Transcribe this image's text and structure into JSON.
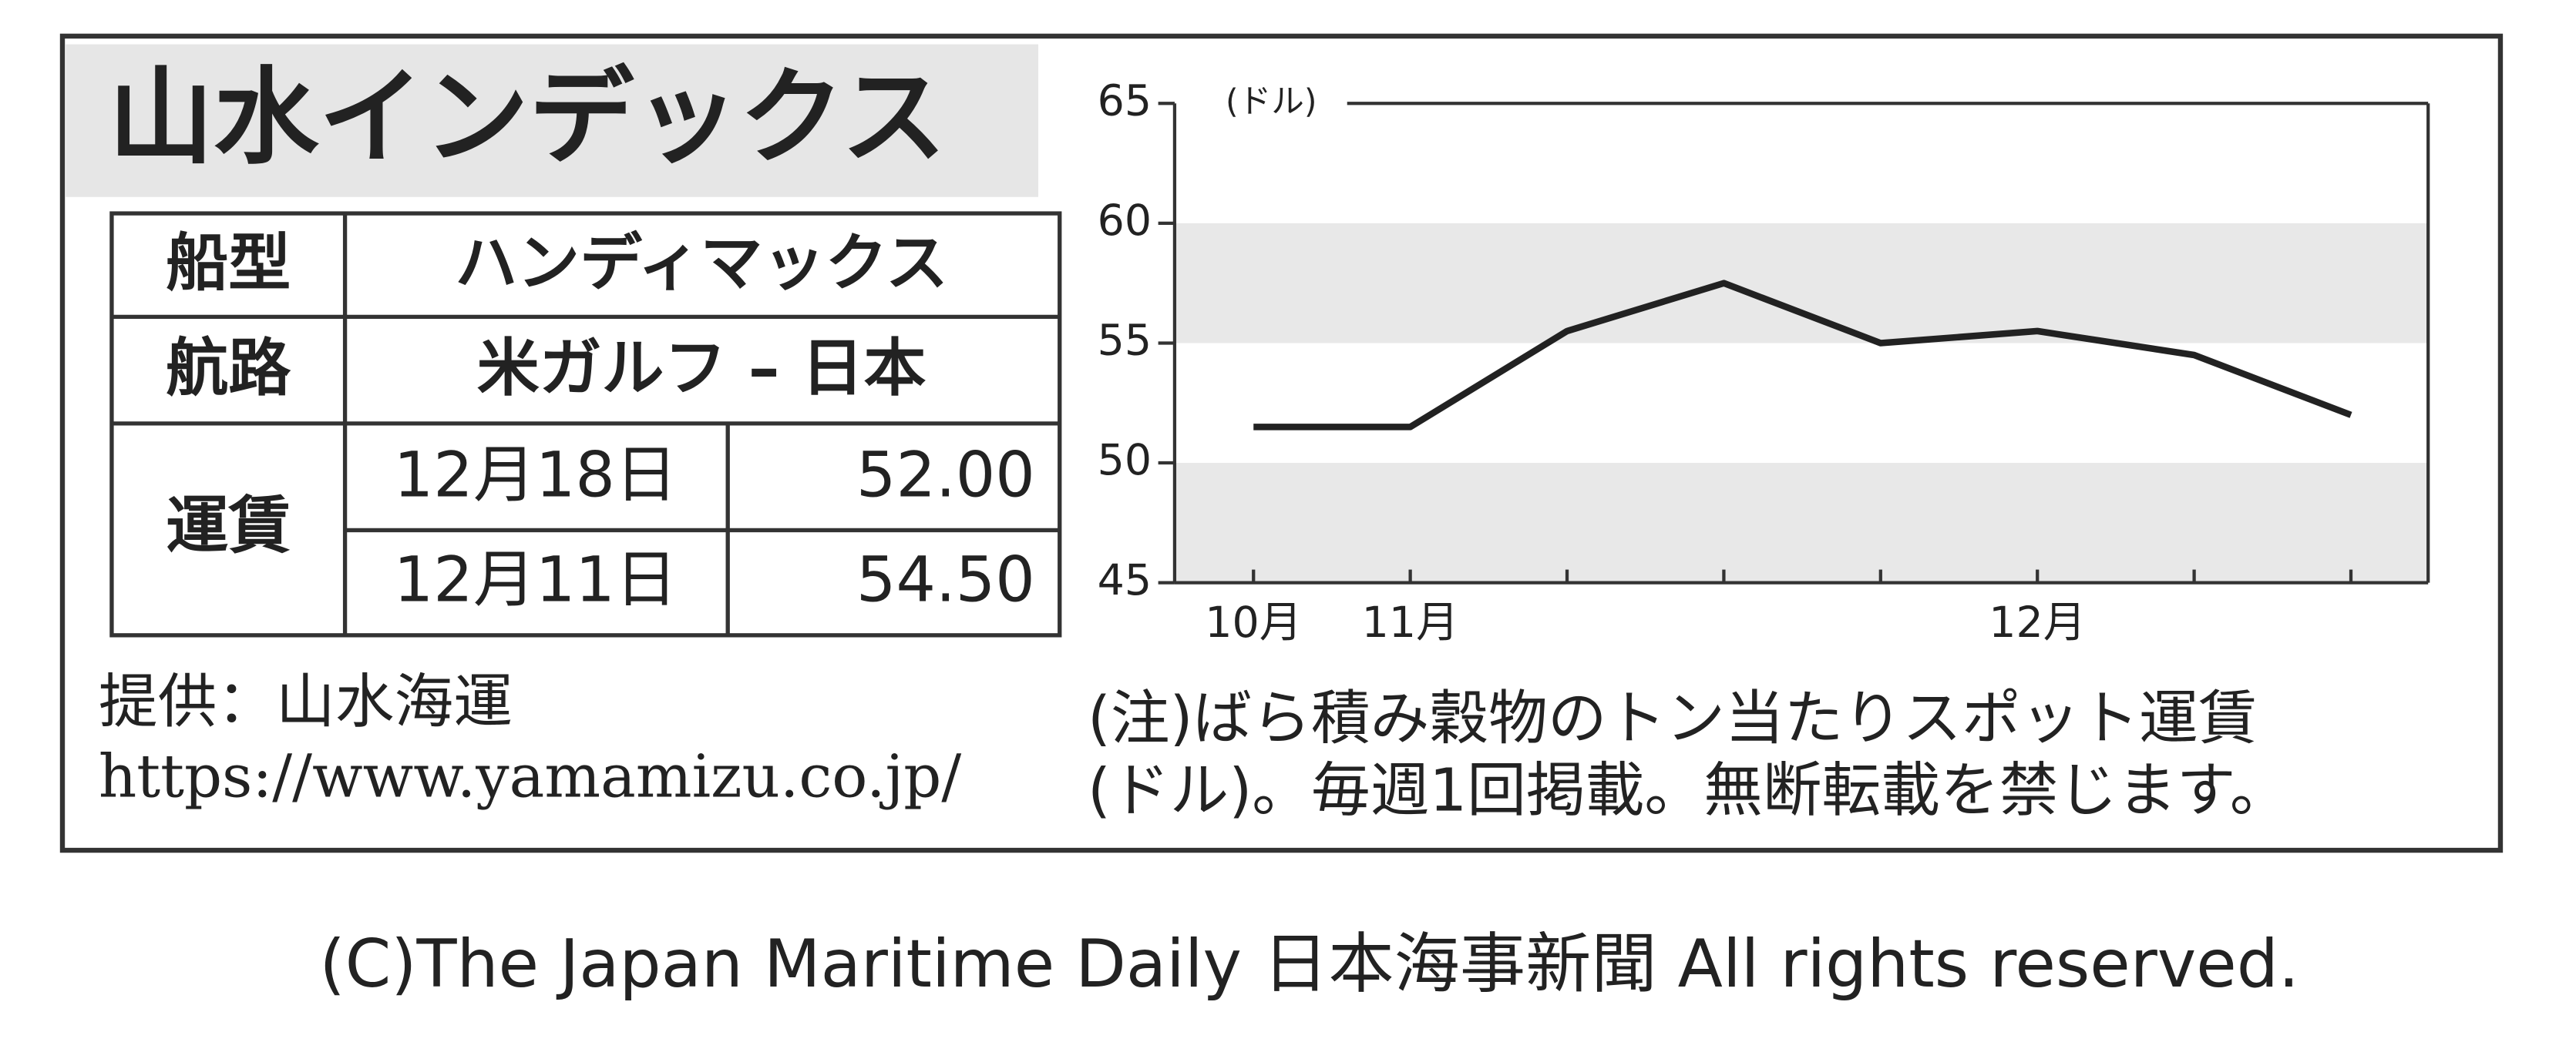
{
  "title": "山水インデックス",
  "table": {
    "rows": [
      [
        "船型",
        "ハンディマックス"
      ],
      [
        "航路",
        "米ガルフ – 日本"
      ]
    ],
    "fare": {
      "label": "運賃",
      "rows": [
        [
          "12月18日",
          "52.00"
        ],
        [
          "12月11日",
          "54.50"
        ]
      ]
    }
  },
  "source": {
    "label": "提供：山水海運",
    "url": "https://www.yamamizu.co.jp/"
  },
  "note": [
    "(注)ばら積み穀物のトン当たりスポット運賃",
    "(ドル)。毎週1回掲載。無断転載を禁じます。"
  ],
  "copyright": "(C)The Japan Maritime Daily 日本海事新聞 All rights reserved.",
  "chart_data": {
    "type": "line",
    "y_label": "(ドル)",
    "categories": [
      "10月",
      "11月",
      null,
      null,
      null,
      "12月",
      null,
      null
    ],
    "values": [
      51.5,
      51.5,
      55.5,
      57.5,
      55.0,
      55.5,
      54.5,
      52.0
    ],
    "color": "#222222",
    "band_color": "#e8e8e8",
    "ylim": [
      45,
      65
    ],
    "yticks": [
      45,
      50,
      55,
      60,
      65
    ]
  }
}
